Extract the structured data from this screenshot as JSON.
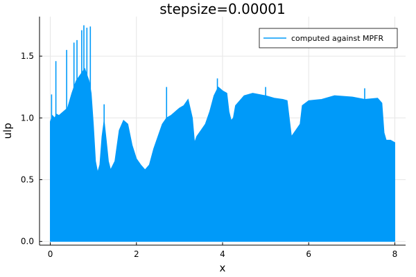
{
  "chart_data": {
    "type": "line",
    "title": "stepsize=0.00001",
    "xlabel": "x",
    "ylabel": "ulp",
    "xlim": [
      -0.25,
      8.25
    ],
    "ylim": [
      -0.03,
      1.82
    ],
    "xticks": [
      0,
      2,
      4,
      6,
      8
    ],
    "xtick_labels": [
      "0",
      "2",
      "4",
      "6",
      "8"
    ],
    "yticks": [
      0.0,
      0.5,
      1.0,
      1.5
    ],
    "ytick_labels": [
      "0.0",
      "0.5",
      "1.0",
      "1.5"
    ],
    "grid": true,
    "legend_position": "top-right",
    "series": [
      {
        "name": "computed against MPFR",
        "color": "#009af9",
        "lower_bound": 0.0,
        "upper_envelope": {
          "x": [
            0.0,
            0.05,
            0.1,
            0.15,
            0.2,
            0.3,
            0.4,
            0.5,
            0.6,
            0.7,
            0.8,
            0.9,
            0.95,
            1.0,
            1.05,
            1.1,
            1.15,
            1.2,
            1.25,
            1.3,
            1.35,
            1.4,
            1.5,
            1.6,
            1.7,
            1.8,
            1.9,
            2.0,
            2.1,
            2.2,
            2.3,
            2.4,
            2.5,
            2.6,
            2.7,
            2.8,
            2.9,
            3.0,
            3.1,
            3.2,
            3.3,
            3.35,
            3.4,
            3.5,
            3.6,
            3.7,
            3.8,
            3.9,
            4.0,
            4.1,
            4.15,
            4.2,
            4.25,
            4.3,
            4.5,
            4.7,
            5.0,
            5.2,
            5.4,
            5.5,
            5.6,
            5.7,
            5.8,
            5.85,
            6.0,
            6.3,
            6.6,
            7.0,
            7.3,
            7.6,
            7.7,
            7.75,
            7.8,
            7.9,
            8.0
          ],
          "y": [
            0.97,
            1.02,
            1.0,
            1.03,
            1.02,
            1.05,
            1.08,
            1.2,
            1.3,
            1.35,
            1.4,
            1.3,
            1.2,
            0.95,
            0.65,
            0.56,
            0.62,
            0.85,
            0.98,
            0.82,
            0.65,
            0.58,
            0.65,
            0.9,
            0.98,
            0.95,
            0.78,
            0.67,
            0.62,
            0.58,
            0.62,
            0.75,
            0.85,
            0.95,
            1.0,
            1.02,
            1.05,
            1.08,
            1.1,
            1.15,
            1.0,
            0.8,
            0.85,
            0.9,
            0.95,
            1.05,
            1.18,
            1.25,
            1.22,
            1.2,
            1.05,
            0.98,
            1.0,
            1.1,
            1.18,
            1.2,
            1.18,
            1.16,
            1.15,
            1.14,
            0.85,
            0.9,
            0.95,
            1.1,
            1.14,
            1.15,
            1.18,
            1.17,
            1.15,
            1.16,
            1.12,
            0.88,
            0.82,
            0.82,
            0.8
          ]
        },
        "spikes": [
          {
            "x": 0.03,
            "y": 1.19
          },
          {
            "x": 0.13,
            "y": 1.46
          },
          {
            "x": 0.38,
            "y": 1.55
          },
          {
            "x": 0.55,
            "y": 1.61
          },
          {
            "x": 0.62,
            "y": 1.63
          },
          {
            "x": 0.73,
            "y": 1.71
          },
          {
            "x": 0.78,
            "y": 1.75
          },
          {
            "x": 0.85,
            "y": 1.73
          },
          {
            "x": 0.93,
            "y": 1.74
          },
          {
            "x": 1.25,
            "y": 1.11
          },
          {
            "x": 2.7,
            "y": 1.25
          },
          {
            "x": 3.88,
            "y": 1.32
          },
          {
            "x": 5.0,
            "y": 1.25
          },
          {
            "x": 7.3,
            "y": 1.24
          }
        ]
      }
    ]
  }
}
